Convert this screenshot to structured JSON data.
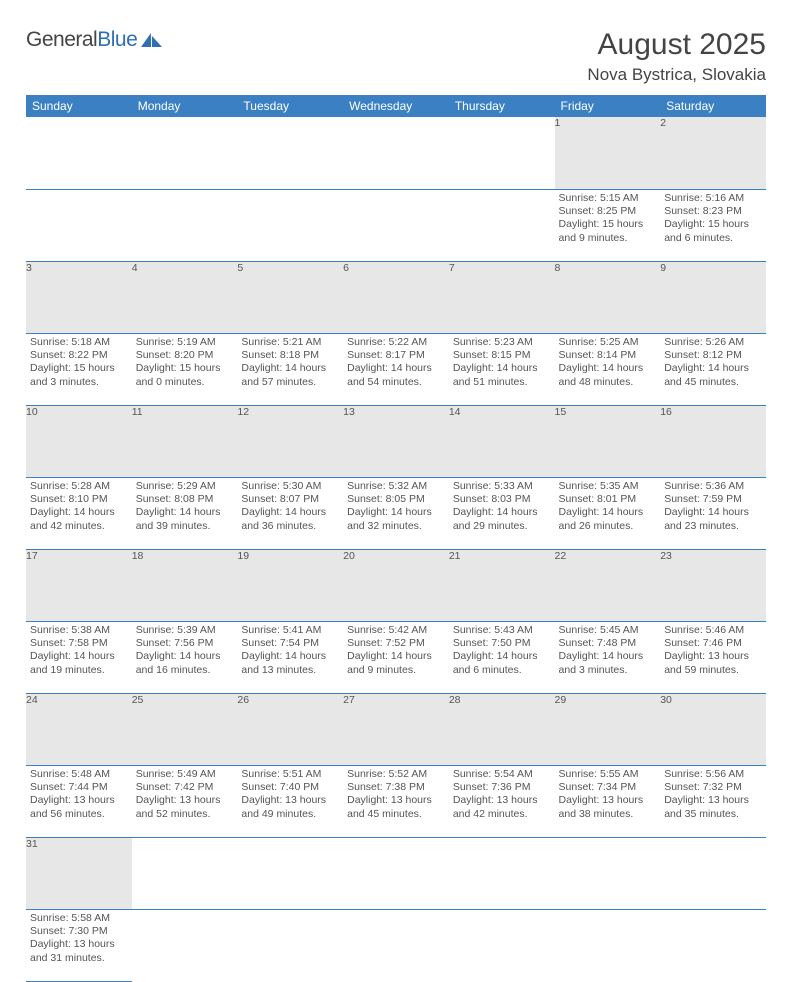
{
  "logo": {
    "text1": "General",
    "text2": "Blue"
  },
  "title": "August 2025",
  "location": "Nova Bystrica, Slovakia",
  "colors": {
    "header_bg": "#3a80c3",
    "header_fg": "#ffffff",
    "daynum_bg": "#e7e7e7",
    "row_border": "#3a80c3",
    "text": "#555555",
    "logo_blue": "#2f6fb2"
  },
  "weekdays": [
    "Sunday",
    "Monday",
    "Tuesday",
    "Wednesday",
    "Thursday",
    "Friday",
    "Saturday"
  ],
  "weeks": [
    [
      null,
      null,
      null,
      null,
      null,
      {
        "n": "1",
        "sr": "5:15 AM",
        "ss": "8:25 PM",
        "dl": "15 hours and 9 minutes."
      },
      {
        "n": "2",
        "sr": "5:16 AM",
        "ss": "8:23 PM",
        "dl": "15 hours and 6 minutes."
      }
    ],
    [
      {
        "n": "3",
        "sr": "5:18 AM",
        "ss": "8:22 PM",
        "dl": "15 hours and 3 minutes."
      },
      {
        "n": "4",
        "sr": "5:19 AM",
        "ss": "8:20 PM",
        "dl": "15 hours and 0 minutes."
      },
      {
        "n": "5",
        "sr": "5:21 AM",
        "ss": "8:18 PM",
        "dl": "14 hours and 57 minutes."
      },
      {
        "n": "6",
        "sr": "5:22 AM",
        "ss": "8:17 PM",
        "dl": "14 hours and 54 minutes."
      },
      {
        "n": "7",
        "sr": "5:23 AM",
        "ss": "8:15 PM",
        "dl": "14 hours and 51 minutes."
      },
      {
        "n": "8",
        "sr": "5:25 AM",
        "ss": "8:14 PM",
        "dl": "14 hours and 48 minutes."
      },
      {
        "n": "9",
        "sr": "5:26 AM",
        "ss": "8:12 PM",
        "dl": "14 hours and 45 minutes."
      }
    ],
    [
      {
        "n": "10",
        "sr": "5:28 AM",
        "ss": "8:10 PM",
        "dl": "14 hours and 42 minutes."
      },
      {
        "n": "11",
        "sr": "5:29 AM",
        "ss": "8:08 PM",
        "dl": "14 hours and 39 minutes."
      },
      {
        "n": "12",
        "sr": "5:30 AM",
        "ss": "8:07 PM",
        "dl": "14 hours and 36 minutes."
      },
      {
        "n": "13",
        "sr": "5:32 AM",
        "ss": "8:05 PM",
        "dl": "14 hours and 32 minutes."
      },
      {
        "n": "14",
        "sr": "5:33 AM",
        "ss": "8:03 PM",
        "dl": "14 hours and 29 minutes."
      },
      {
        "n": "15",
        "sr": "5:35 AM",
        "ss": "8:01 PM",
        "dl": "14 hours and 26 minutes."
      },
      {
        "n": "16",
        "sr": "5:36 AM",
        "ss": "7:59 PM",
        "dl": "14 hours and 23 minutes."
      }
    ],
    [
      {
        "n": "17",
        "sr": "5:38 AM",
        "ss": "7:58 PM",
        "dl": "14 hours and 19 minutes."
      },
      {
        "n": "18",
        "sr": "5:39 AM",
        "ss": "7:56 PM",
        "dl": "14 hours and 16 minutes."
      },
      {
        "n": "19",
        "sr": "5:41 AM",
        "ss": "7:54 PM",
        "dl": "14 hours and 13 minutes."
      },
      {
        "n": "20",
        "sr": "5:42 AM",
        "ss": "7:52 PM",
        "dl": "14 hours and 9 minutes."
      },
      {
        "n": "21",
        "sr": "5:43 AM",
        "ss": "7:50 PM",
        "dl": "14 hours and 6 minutes."
      },
      {
        "n": "22",
        "sr": "5:45 AM",
        "ss": "7:48 PM",
        "dl": "14 hours and 3 minutes."
      },
      {
        "n": "23",
        "sr": "5:46 AM",
        "ss": "7:46 PM",
        "dl": "13 hours and 59 minutes."
      }
    ],
    [
      {
        "n": "24",
        "sr": "5:48 AM",
        "ss": "7:44 PM",
        "dl": "13 hours and 56 minutes."
      },
      {
        "n": "25",
        "sr": "5:49 AM",
        "ss": "7:42 PM",
        "dl": "13 hours and 52 minutes."
      },
      {
        "n": "26",
        "sr": "5:51 AM",
        "ss": "7:40 PM",
        "dl": "13 hours and 49 minutes."
      },
      {
        "n": "27",
        "sr": "5:52 AM",
        "ss": "7:38 PM",
        "dl": "13 hours and 45 minutes."
      },
      {
        "n": "28",
        "sr": "5:54 AM",
        "ss": "7:36 PM",
        "dl": "13 hours and 42 minutes."
      },
      {
        "n": "29",
        "sr": "5:55 AM",
        "ss": "7:34 PM",
        "dl": "13 hours and 38 minutes."
      },
      {
        "n": "30",
        "sr": "5:56 AM",
        "ss": "7:32 PM",
        "dl": "13 hours and 35 minutes."
      }
    ],
    [
      {
        "n": "31",
        "sr": "5:58 AM",
        "ss": "7:30 PM",
        "dl": "13 hours and 31 minutes."
      },
      null,
      null,
      null,
      null,
      null,
      null
    ]
  ],
  "labels": {
    "sunrise": "Sunrise:",
    "sunset": "Sunset:",
    "daylight": "Daylight:"
  }
}
